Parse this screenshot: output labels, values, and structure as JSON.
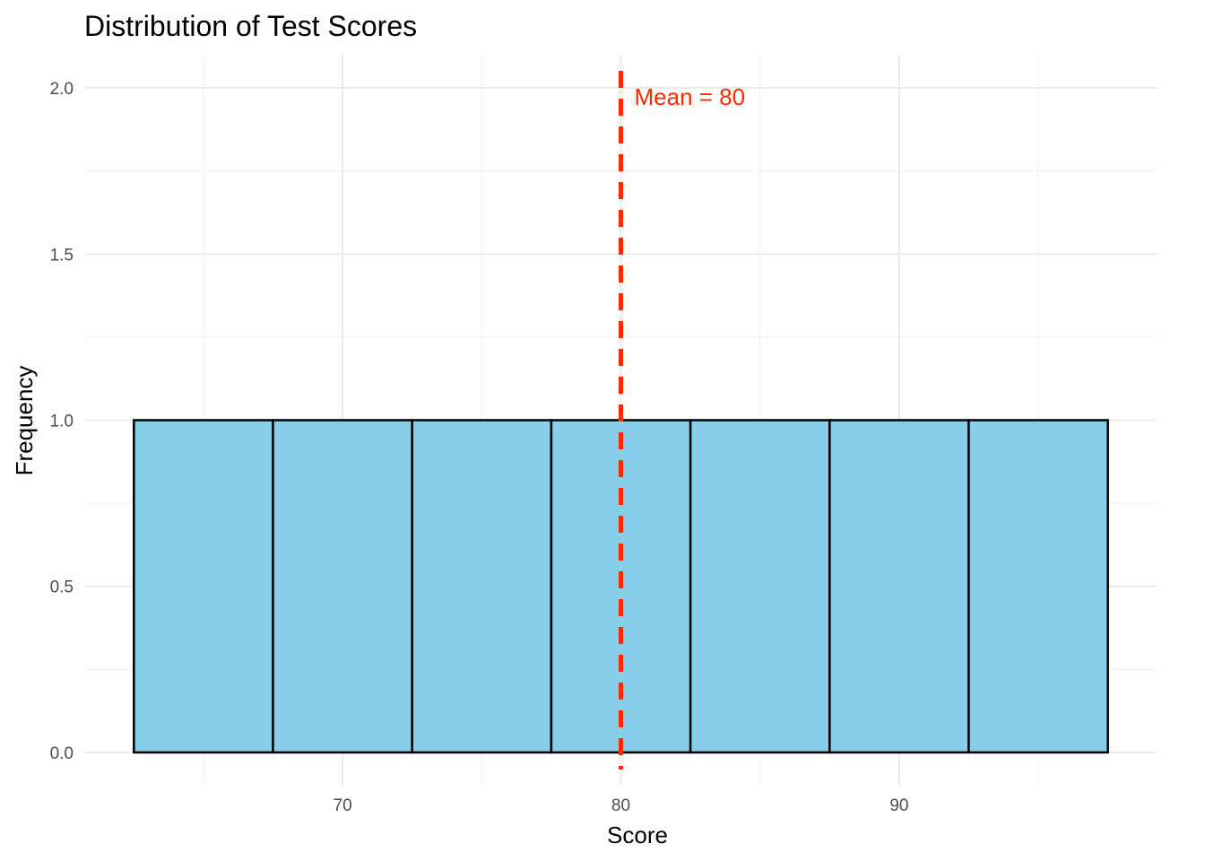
{
  "chart_data": {
    "type": "histogram",
    "title": "Distribution of Test Scores",
    "xlabel": "Score",
    "ylabel": "Frequency",
    "bins": [
      {
        "start": 62.5,
        "end": 67.5,
        "count": 1
      },
      {
        "start": 67.5,
        "end": 72.5,
        "count": 1
      },
      {
        "start": 72.5,
        "end": 77.5,
        "count": 1
      },
      {
        "start": 77.5,
        "end": 82.5,
        "count": 1
      },
      {
        "start": 82.5,
        "end": 87.5,
        "count": 1
      },
      {
        "start": 87.5,
        "end": 92.5,
        "count": 1
      },
      {
        "start": 92.5,
        "end": 97.5,
        "count": 1
      }
    ],
    "xlim": [
      60.75,
      99.25
    ],
    "ylim": [
      -0.1,
      2.1
    ],
    "x_ticks": [
      70,
      80,
      90
    ],
    "x_tick_labels": [
      "70",
      "80",
      "90"
    ],
    "x_minor_ticks": [
      65,
      75,
      85,
      95
    ],
    "y_ticks": [
      0.0,
      0.5,
      1.0,
      1.5,
      2.0
    ],
    "y_tick_labels": [
      "0.0",
      "0.5",
      "1.0",
      "1.5",
      "2.0"
    ],
    "y_minor_ticks": [
      0.25,
      0.75,
      1.25,
      1.75
    ],
    "bar_fill": "#87CEEB",
    "bar_outline": "#000000",
    "mean_line": {
      "x": 80,
      "color": "#FF2A00",
      "style": "dashed"
    },
    "annotation": {
      "text": "Mean = 80",
      "x": 80,
      "y": 2.0,
      "color": "#FF2A00"
    },
    "grid": true,
    "legend": "none"
  }
}
